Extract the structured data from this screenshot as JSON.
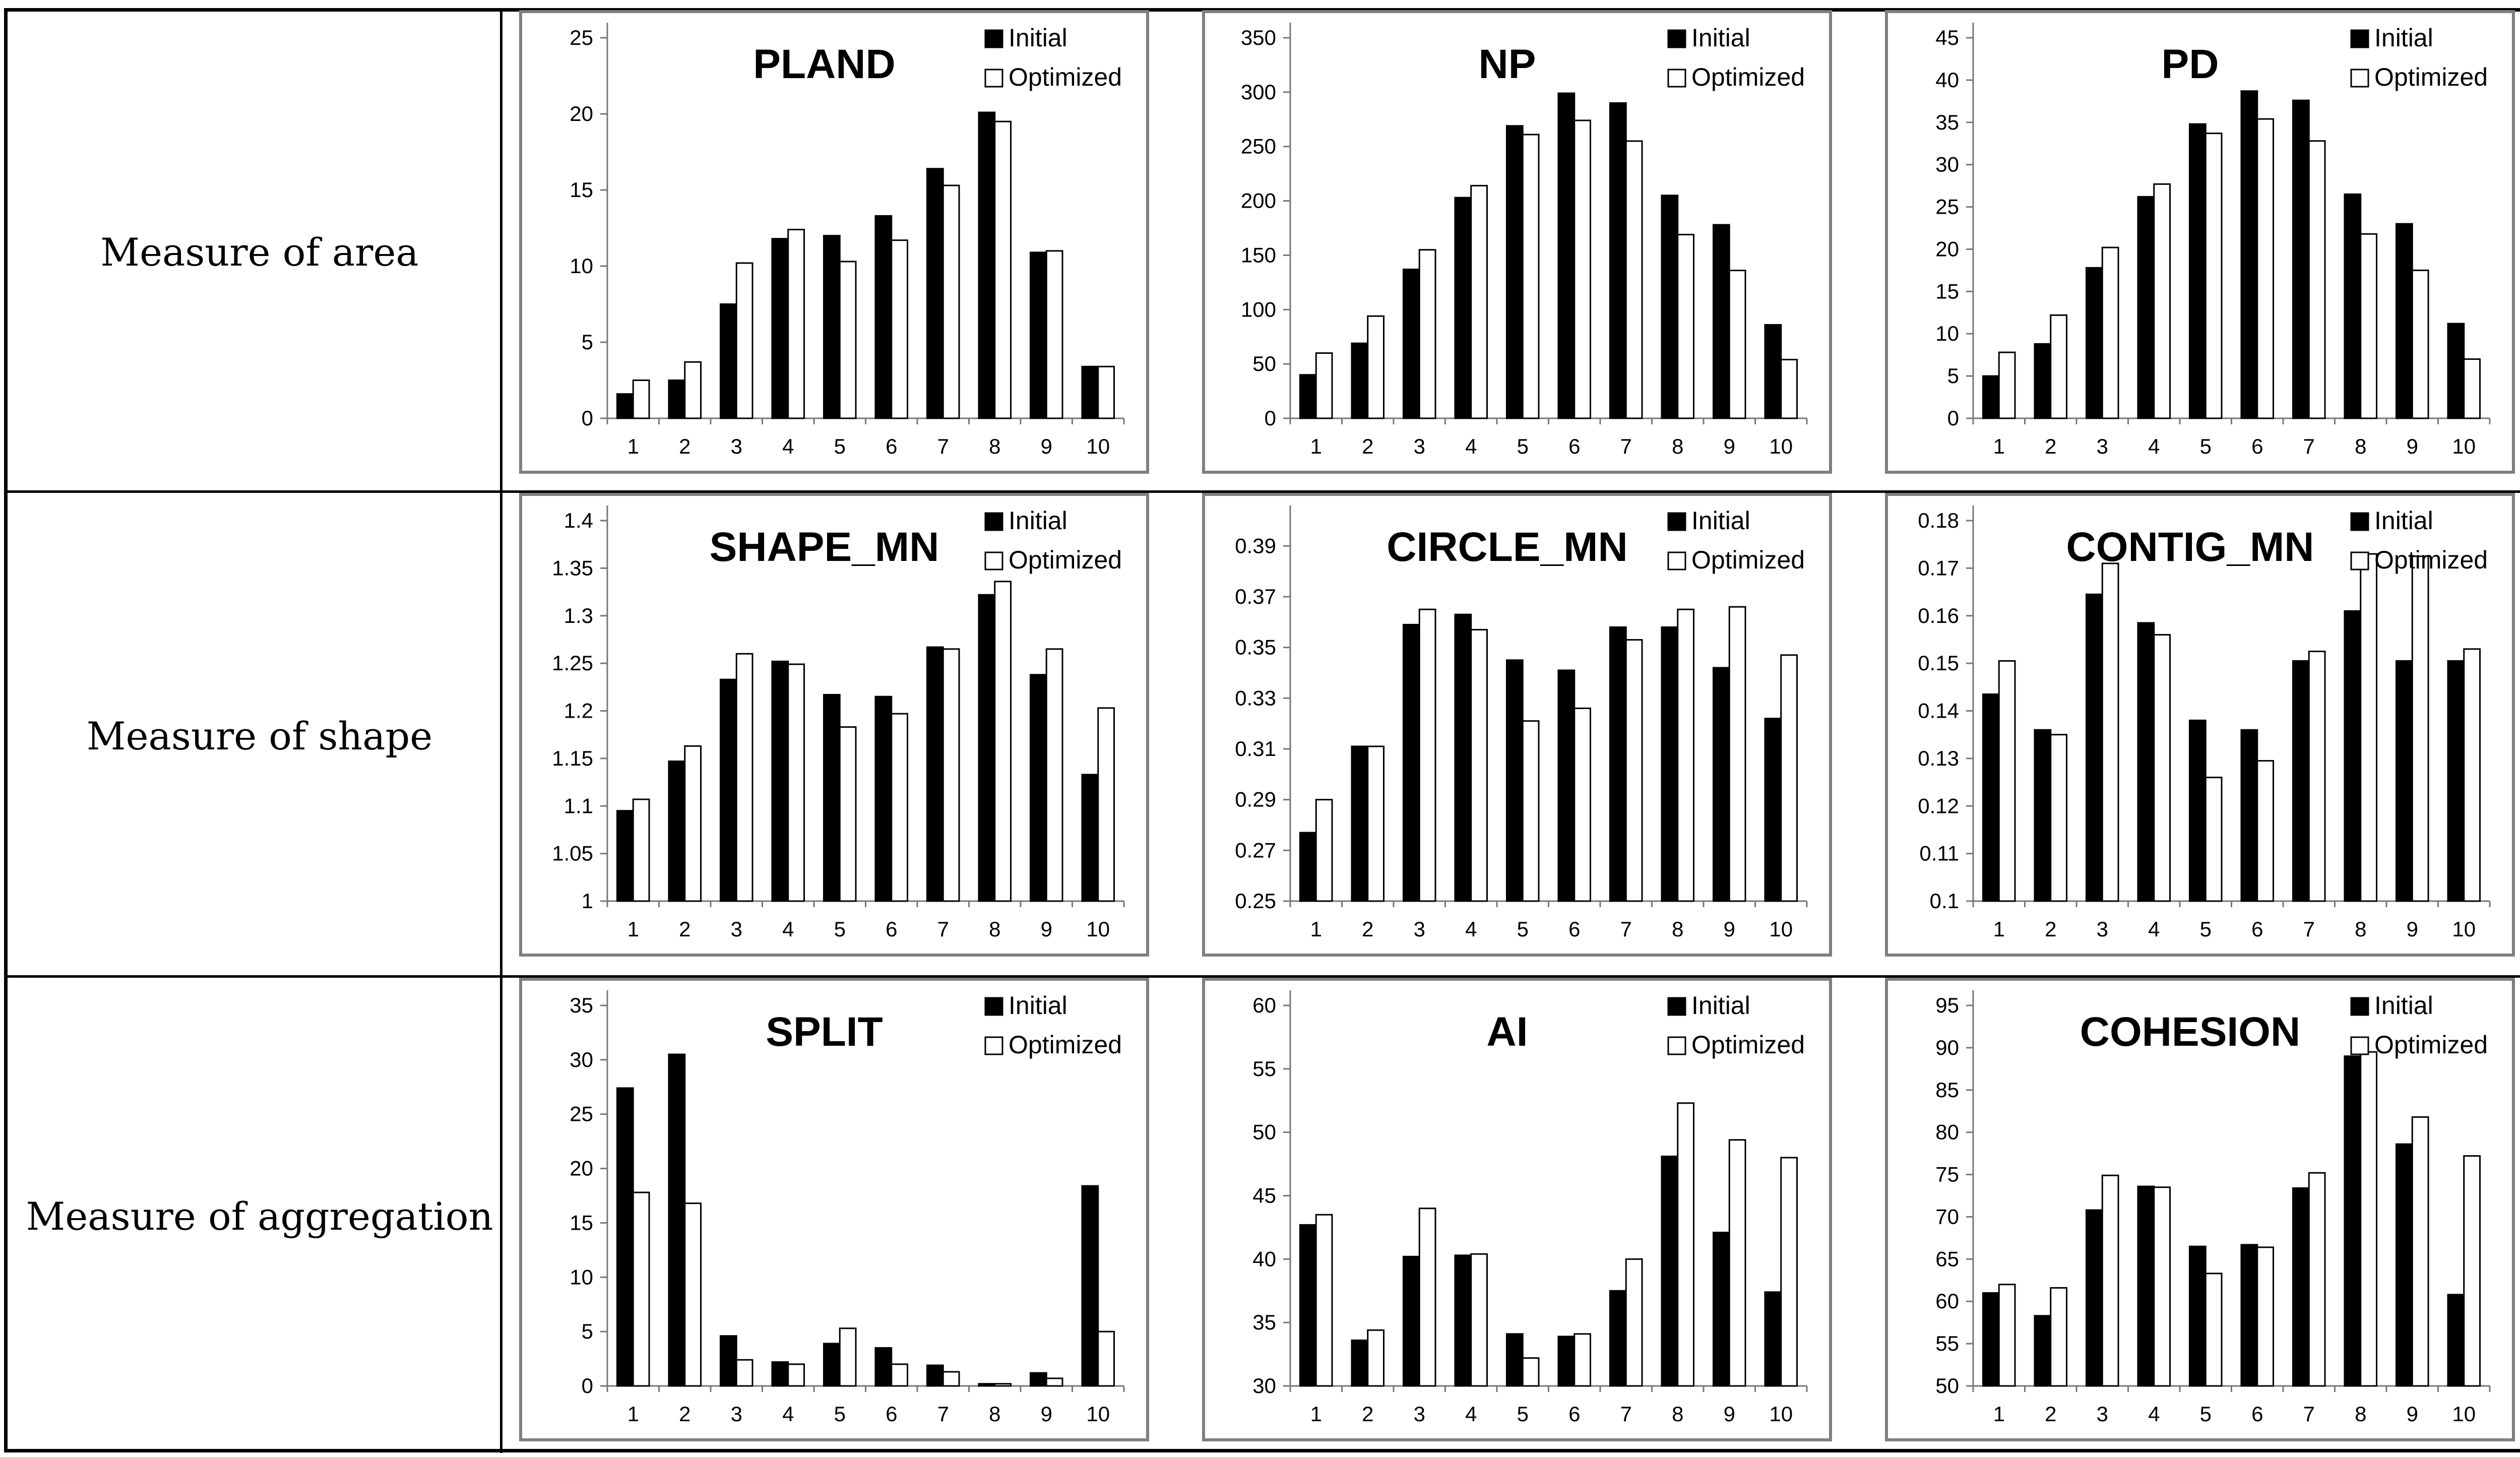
{
  "rows": [
    {
      "label": "Measure of area"
    },
    {
      "label": "Measure of shape"
    },
    {
      "label": "Measure of aggregation"
    }
  ],
  "colors": {
    "initial": "#000000",
    "optimized": "#ffffff",
    "stroke": "#000000",
    "frame": "#7f7f7f"
  },
  "chart_data": [
    {
      "type": "bar",
      "title": "PLAND",
      "categories": [
        "1",
        "2",
        "3",
        "4",
        "5",
        "6",
        "7",
        "8",
        "9",
        "10"
      ],
      "ylim": [
        0,
        25
      ],
      "yticks": [
        "0",
        "5",
        "10",
        "15",
        "20",
        "25"
      ],
      "series": [
        {
          "name": "Initial",
          "values": [
            1.6,
            2.5,
            7.5,
            11.8,
            12.0,
            13.3,
            16.4,
            20.1,
            10.9,
            3.4
          ]
        },
        {
          "name": "Optimized",
          "values": [
            2.5,
            3.7,
            10.2,
            12.4,
            10.3,
            11.7,
            15.3,
            19.5,
            11.0,
            3.4
          ]
        }
      ]
    },
    {
      "type": "bar",
      "title": "NP",
      "categories": [
        "1",
        "2",
        "3",
        "4",
        "5",
        "6",
        "7",
        "8",
        "9",
        "10"
      ],
      "ylim": [
        0,
        350
      ],
      "yticks": [
        "0",
        "50",
        "100",
        "150",
        "200",
        "250",
        "300",
        "350"
      ],
      "series": [
        {
          "name": "Initial",
          "values": [
            40,
            69,
            137,
            203,
            269,
            299,
            290,
            205,
            178,
            86
          ]
        },
        {
          "name": "Optimized",
          "values": [
            60,
            94,
            155,
            214,
            261,
            274,
            255,
            169,
            136,
            54
          ]
        }
      ]
    },
    {
      "type": "bar",
      "title": "PD",
      "categories": [
        "1",
        "2",
        "3",
        "4",
        "5",
        "6",
        "7",
        "8",
        "9",
        "10"
      ],
      "ylim": [
        0,
        45
      ],
      "yticks": [
        "0",
        "5",
        "10",
        "15",
        "20",
        "25",
        "30",
        "35",
        "40",
        "45"
      ],
      "series": [
        {
          "name": "Initial",
          "values": [
            5.0,
            8.8,
            17.8,
            26.2,
            34.8,
            38.7,
            37.6,
            26.5,
            23.0,
            11.2
          ]
        },
        {
          "name": "Optimized",
          "values": [
            7.8,
            12.2,
            20.2,
            27.7,
            33.7,
            35.4,
            32.8,
            21.8,
            17.5,
            7.0
          ]
        }
      ]
    },
    {
      "type": "bar",
      "title": "SHAPE_MN",
      "categories": [
        "1",
        "2",
        "3",
        "4",
        "5",
        "6",
        "7",
        "8",
        "9",
        "10"
      ],
      "ylim": [
        1,
        1.4
      ],
      "yticks": [
        "1",
        "1.05",
        "1.1",
        "1.15",
        "1.2",
        "1.25",
        "1.3",
        "1.35",
        "1.4"
      ],
      "series": [
        {
          "name": "Initial",
          "values": [
            1.095,
            1.147,
            1.233,
            1.252,
            1.217,
            1.215,
            1.267,
            1.322,
            1.238,
            1.133
          ]
        },
        {
          "name": "Optimized",
          "values": [
            1.107,
            1.163,
            1.26,
            1.249,
            1.183,
            1.197,
            1.265,
            1.336,
            1.265,
            1.203
          ]
        }
      ]
    },
    {
      "type": "bar",
      "title": "CIRCLE_MN",
      "categories": [
        "1",
        "2",
        "3",
        "4",
        "5",
        "6",
        "7",
        "8",
        "9",
        "10"
      ],
      "ylim": [
        0.25,
        0.4
      ],
      "yticks": [
        "0.25",
        "0.27",
        "0.29",
        "0.31",
        "0.33",
        "0.35",
        "0.37",
        "0.39"
      ],
      "series": [
        {
          "name": "Initial",
          "values": [
            0.277,
            0.311,
            0.359,
            0.363,
            0.345,
            0.341,
            0.358,
            0.358,
            0.342,
            0.322
          ]
        },
        {
          "name": "Optimized",
          "values": [
            0.29,
            0.311,
            0.365,
            0.357,
            0.321,
            0.326,
            0.353,
            0.365,
            0.366,
            0.347
          ]
        }
      ]
    },
    {
      "type": "bar",
      "title": "CONTIG_MN",
      "categories": [
        "1",
        "2",
        "3",
        "4",
        "5",
        "6",
        "7",
        "8",
        "9",
        "10"
      ],
      "ylim": [
        0.1,
        0.18
      ],
      "yticks": [
        "0.1",
        "0.11",
        "0.12",
        "0.13",
        "0.14",
        "0.15",
        "0.16",
        "0.17",
        "0.18"
      ],
      "series": [
        {
          "name": "Initial",
          "values": [
            0.1435,
            0.136,
            0.1645,
            0.1585,
            0.138,
            0.136,
            0.1505,
            0.161,
            0.1505,
            0.1505
          ]
        },
        {
          "name": "Optimized",
          "values": [
            0.1505,
            0.135,
            0.171,
            0.156,
            0.126,
            0.1295,
            0.1525,
            0.173,
            0.1725,
            0.153
          ]
        }
      ]
    },
    {
      "type": "bar",
      "title": "SPLIT",
      "categories": [
        "1",
        "2",
        "3",
        "4",
        "5",
        "6",
        "7",
        "8",
        "9",
        "10"
      ],
      "ylim": [
        0,
        35
      ],
      "yticks": [
        "0",
        "5",
        "10",
        "15",
        "20",
        "25",
        "30",
        "35"
      ],
      "series": [
        {
          "name": "Initial",
          "values": [
            27.4,
            30.5,
            4.6,
            2.2,
            3.9,
            3.5,
            1.9,
            0.2,
            1.2,
            18.4
          ]
        },
        {
          "name": "Optimized",
          "values": [
            17.8,
            16.8,
            2.4,
            2.0,
            5.3,
            2.0,
            1.3,
            0.2,
            0.7,
            5.0
          ]
        }
      ]
    },
    {
      "type": "bar",
      "title": "AI",
      "categories": [
        "1",
        "2",
        "3",
        "4",
        "5",
        "6",
        "7",
        "8",
        "9",
        "10"
      ],
      "ylim": [
        30,
        60
      ],
      "yticks": [
        "30",
        "35",
        "40",
        "45",
        "50",
        "55",
        "60"
      ],
      "series": [
        {
          "name": "Initial",
          "values": [
            42.7,
            33.6,
            40.2,
            40.3,
            34.1,
            33.9,
            37.5,
            48.1,
            42.1,
            37.4
          ]
        },
        {
          "name": "Optimized",
          "values": [
            43.5,
            34.4,
            44.0,
            40.4,
            32.2,
            34.1,
            40.0,
            52.3,
            49.4,
            48.0
          ]
        }
      ]
    },
    {
      "type": "bar",
      "title": "COHESION",
      "categories": [
        "1",
        "2",
        "3",
        "4",
        "5",
        "6",
        "7",
        "8",
        "9",
        "10"
      ],
      "ylim": [
        50,
        95
      ],
      "yticks": [
        "50",
        "55",
        "60",
        "65",
        "70",
        "75",
        "80",
        "85",
        "90",
        "95"
      ],
      "series": [
        {
          "name": "Initial",
          "values": [
            61.0,
            58.3,
            70.8,
            73.6,
            66.5,
            66.7,
            73.4,
            89.0,
            78.6,
            60.8
          ]
        },
        {
          "name": "Optimized",
          "values": [
            62.0,
            61.6,
            74.9,
            73.5,
            63.3,
            66.4,
            75.2,
            89.5,
            81.8,
            77.2
          ]
        }
      ]
    }
  ]
}
